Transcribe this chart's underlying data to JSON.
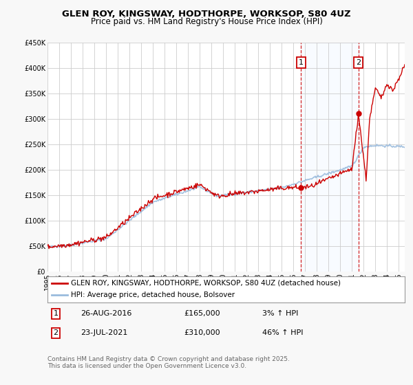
{
  "title": "GLEN ROY, KINGSWAY, HODTHORPE, WORKSOP, S80 4UZ",
  "subtitle": "Price paid vs. HM Land Registry's House Price Index (HPI)",
  "legend_label_red": "GLEN ROY, KINGSWAY, HODTHORPE, WORKSOP, S80 4UZ (detached house)",
  "legend_label_blue": "HPI: Average price, detached house, Bolsover",
  "footnote": "Contains HM Land Registry data © Crown copyright and database right 2025.\nThis data is licensed under the Open Government Licence v3.0.",
  "annotation1_label": "1",
  "annotation1_date": "26-AUG-2016",
  "annotation1_price": "£165,000",
  "annotation1_pct": "3% ↑ HPI",
  "annotation2_label": "2",
  "annotation2_date": "23-JUL-2021",
  "annotation2_price": "£310,000",
  "annotation2_pct": "46% ↑ HPI",
  "vline1_x": 2016.65,
  "vline2_x": 2021.55,
  "marker1_x": 2016.65,
  "marker1_y": 165000,
  "marker2_x": 2021.55,
  "marker2_y": 310000,
  "ylim": [
    0,
    450000
  ],
  "xlim": [
    1995,
    2025.5
  ],
  "yticks": [
    0,
    50000,
    100000,
    150000,
    200000,
    250000,
    300000,
    350000,
    400000,
    450000
  ],
  "ytick_labels": [
    "£0",
    "£50K",
    "£100K",
    "£150K",
    "£200K",
    "£250K",
    "£300K",
    "£350K",
    "£400K",
    "£450K"
  ],
  "background_color": "#f8f8f8",
  "plot_bg_color": "#ffffff",
  "grid_color": "#cccccc",
  "red_color": "#cc0000",
  "blue_color": "#99bbdd",
  "vline_color": "#cc0000",
  "shade_color": "#ddeeff",
  "title_fontsize": 9.5,
  "subtitle_fontsize": 8.5,
  "tick_fontsize": 7,
  "legend_fontsize": 7.5,
  "annot_fontsize": 8,
  "footnote_fontsize": 6.5
}
